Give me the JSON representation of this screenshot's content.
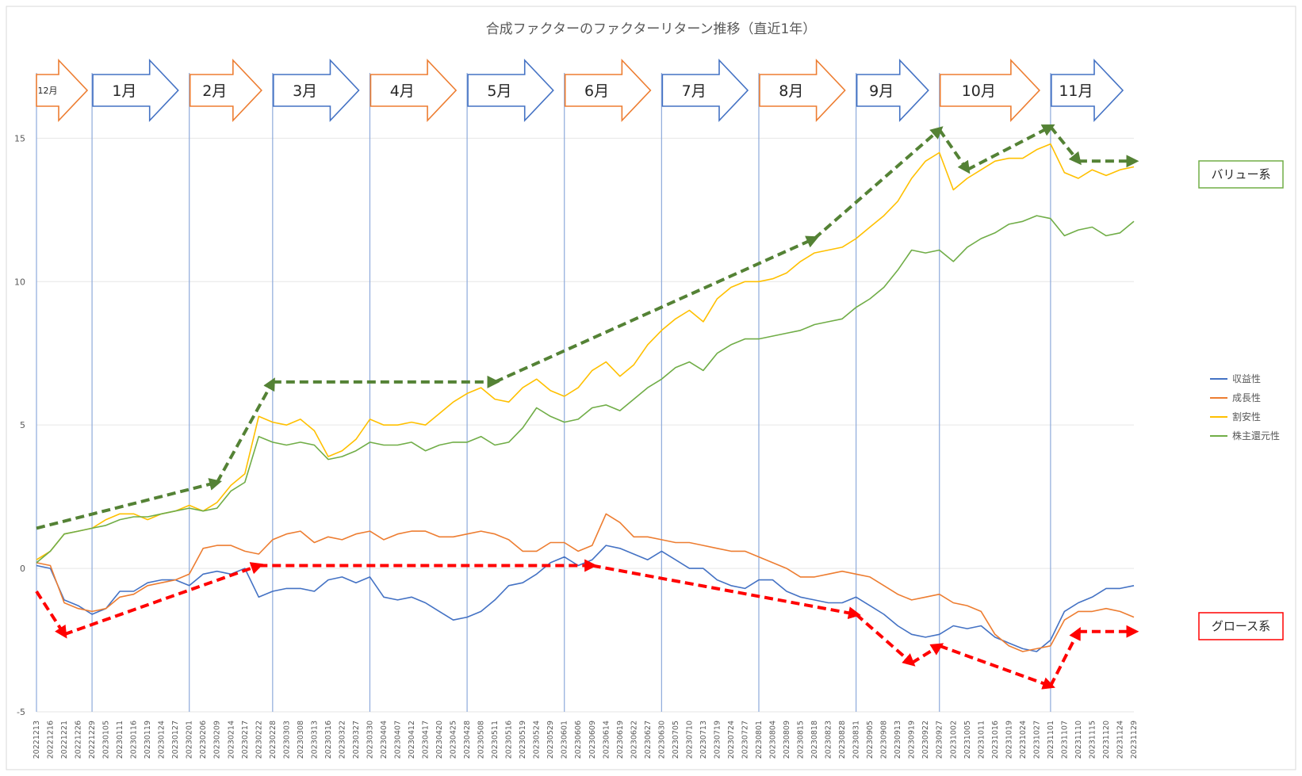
{
  "chart_data": {
    "type": "line",
    "title": "合成ファクターのファクターリターン推移（直近1年）",
    "ylim": [
      -5,
      17
    ],
    "yticks": [
      -5,
      0,
      5,
      10,
      15
    ],
    "grid": true,
    "legend_position": "right",
    "x_tick_labels": [
      "20221213",
      "20221216",
      "20221221",
      "20221226",
      "20221229",
      "20230105",
      "20230111",
      "20230116",
      "20230119",
      "20230124",
      "20230127",
      "20230201",
      "20230206",
      "20230209",
      "20230214",
      "20230217",
      "20230222",
      "20230228",
      "20230303",
      "20230308",
      "20230313",
      "20230316",
      "20230322",
      "20230327",
      "20230330",
      "20230404",
      "20230407",
      "20230412",
      "20230417",
      "20230420",
      "20230425",
      "20230428",
      "20230508",
      "20230511",
      "20230516",
      "20230519",
      "20230524",
      "20230529",
      "20230601",
      "20230606",
      "20230609",
      "20230614",
      "20230619",
      "20230622",
      "20230627",
      "20230630",
      "20230705",
      "20230710",
      "20230713",
      "20230719",
      "20230724",
      "20230727",
      "20230801",
      "20230804",
      "20230809",
      "20230815",
      "20230818",
      "20230823",
      "20230828",
      "20230831",
      "20230905",
      "20230908",
      "20230913",
      "20230919",
      "20230922",
      "20230927",
      "20231002",
      "20231005",
      "20231011",
      "20231016",
      "20231019",
      "20231024",
      "20231027",
      "20231101",
      "20231107",
      "20231110",
      "20231115",
      "20231120",
      "20231124",
      "20231129"
    ],
    "month_boundaries": [
      4,
      11,
      17,
      24,
      31,
      38,
      45,
      52,
      59,
      65,
      73
    ],
    "month_arrows": [
      {
        "label": "12月",
        "color": "#ed7d31"
      },
      {
        "label": "1月",
        "color": "#4472c4"
      },
      {
        "label": "2月",
        "color": "#ed7d31"
      },
      {
        "label": "3月",
        "color": "#4472c4"
      },
      {
        "label": "4月",
        "color": "#ed7d31"
      },
      {
        "label": "5月",
        "color": "#4472c4"
      },
      {
        "label": "6月",
        "color": "#ed7d31"
      },
      {
        "label": "7月",
        "color": "#4472c4"
      },
      {
        "label": "8月",
        "color": "#ed7d31"
      },
      {
        "label": "9月",
        "color": "#4472c4"
      },
      {
        "label": "10月",
        "color": "#ed7d31"
      },
      {
        "label": "11月",
        "color": "#4472c4"
      }
    ],
    "series": [
      {
        "name": "収益性",
        "color": "#4472c4",
        "values": [
          0.1,
          0.0,
          -1.1,
          -1.3,
          -1.6,
          -1.4,
          -0.8,
          -0.8,
          -0.5,
          -0.4,
          -0.4,
          -0.6,
          -0.2,
          -0.1,
          -0.2,
          0.0,
          -1.0,
          -0.8,
          -0.7,
          -0.7,
          -0.8,
          -0.4,
          -0.3,
          -0.5,
          -0.3,
          -1.0,
          -1.1,
          -1.0,
          -1.2,
          -1.5,
          -1.8,
          -1.7,
          -1.5,
          -1.1,
          -0.6,
          -0.5,
          -0.2,
          0.2,
          0.4,
          0.1,
          0.3,
          0.8,
          0.7,
          0.5,
          0.3,
          0.6,
          0.3,
          0.0,
          0.0,
          -0.4,
          -0.6,
          -0.7,
          -0.4,
          -0.4,
          -0.8,
          -1.0,
          -1.1,
          -1.2,
          -1.2,
          -1.0,
          -1.3,
          -1.6,
          -2.0,
          -2.3,
          -2.4,
          -2.3,
          -2.0,
          -2.1,
          -2.0,
          -2.4,
          -2.6,
          -2.8,
          -2.9,
          -2.5,
          -1.5,
          -1.2,
          -1.0,
          -0.7,
          -0.7,
          -0.6
        ]
      },
      {
        "name": "成長性",
        "color": "#ed7d31",
        "values": [
          0.2,
          0.1,
          -1.2,
          -1.4,
          -1.5,
          -1.4,
          -1.0,
          -0.9,
          -0.6,
          -0.5,
          -0.4,
          -0.2,
          0.7,
          0.8,
          0.8,
          0.6,
          0.5,
          1.0,
          1.2,
          1.3,
          0.9,
          1.1,
          1.0,
          1.2,
          1.3,
          1.0,
          1.2,
          1.3,
          1.3,
          1.1,
          1.1,
          1.2,
          1.3,
          1.2,
          1.0,
          0.6,
          0.6,
          0.9,
          0.9,
          0.6,
          0.8,
          1.9,
          1.6,
          1.1,
          1.1,
          1.0,
          0.9,
          0.9,
          0.8,
          0.7,
          0.6,
          0.6,
          0.4,
          0.2,
          0.0,
          -0.3,
          -0.3,
          -0.2,
          -0.1,
          -0.2,
          -0.3,
          -0.6,
          -0.9,
          -1.1,
          -1.0,
          -0.9,
          -1.2,
          -1.3,
          -1.5,
          -2.3,
          -2.7,
          -2.9,
          -2.8,
          -2.7,
          -1.8,
          -1.5,
          -1.5,
          -1.4,
          -1.5,
          -1.7
        ]
      },
      {
        "name": "割安性",
        "color": "#ffc000",
        "values": [
          0.3,
          0.6,
          1.2,
          1.3,
          1.4,
          1.7,
          1.9,
          1.9,
          1.7,
          1.9,
          2.0,
          2.2,
          2.0,
          2.3,
          2.9,
          3.3,
          5.3,
          5.1,
          5.0,
          5.2,
          4.8,
          3.9,
          4.1,
          4.5,
          5.2,
          5.0,
          5.0,
          5.1,
          5.0,
          5.4,
          5.8,
          6.1,
          6.3,
          5.9,
          5.8,
          6.3,
          6.6,
          6.2,
          6.0,
          6.3,
          6.9,
          7.2,
          6.7,
          7.1,
          7.8,
          8.3,
          8.7,
          9.0,
          8.6,
          9.4,
          9.8,
          10.0,
          10.0,
          10.1,
          10.3,
          10.7,
          11.0,
          11.1,
          11.2,
          11.5,
          11.9,
          12.3,
          12.8,
          13.6,
          14.2,
          14.5,
          13.2,
          13.6,
          13.9,
          14.2,
          14.3,
          14.3,
          14.6,
          14.8,
          13.8,
          13.6,
          13.9,
          13.7,
          13.9,
          14.0
        ]
      },
      {
        "name": "株主還元性",
        "color": "#70ad47",
        "values": [
          0.2,
          0.6,
          1.2,
          1.3,
          1.4,
          1.5,
          1.7,
          1.8,
          1.8,
          1.9,
          2.0,
          2.1,
          2.0,
          2.1,
          2.7,
          3.0,
          4.6,
          4.4,
          4.3,
          4.4,
          4.3,
          3.8,
          3.9,
          4.1,
          4.4,
          4.3,
          4.3,
          4.4,
          4.1,
          4.3,
          4.4,
          4.4,
          4.6,
          4.3,
          4.4,
          4.9,
          5.6,
          5.3,
          5.1,
          5.2,
          5.6,
          5.7,
          5.5,
          5.9,
          6.3,
          6.6,
          7.0,
          7.2,
          6.9,
          7.5,
          7.8,
          8.0,
          8.0,
          8.1,
          8.2,
          8.3,
          8.5,
          8.6,
          8.7,
          9.1,
          9.4,
          9.8,
          10.4,
          11.1,
          11.0,
          11.1,
          10.7,
          11.2,
          11.5,
          11.7,
          12.0,
          12.1,
          12.3,
          12.2,
          11.6,
          11.8,
          11.9,
          11.6,
          11.7,
          12.1
        ]
      }
    ],
    "trend_lines": [
      {
        "group": "バリュー系",
        "color": "#548235",
        "points": [
          [
            0,
            1.4
          ],
          [
            13,
            3.0
          ],
          [
            17,
            6.5
          ],
          [
            33,
            6.5
          ],
          [
            56,
            11.5
          ],
          [
            65,
            15.3
          ],
          [
            67,
            13.9
          ],
          [
            73,
            15.4
          ],
          [
            75,
            14.2
          ],
          [
            79,
            14.2
          ]
        ]
      },
      {
        "group": "グロース系",
        "color": "#ff0000",
        "points": [
          [
            0,
            -0.8
          ],
          [
            2,
            -2.3
          ],
          [
            16,
            0.1
          ],
          [
            40,
            0.1
          ],
          [
            59,
            -1.6
          ],
          [
            63,
            -3.3
          ],
          [
            65,
            -2.7
          ],
          [
            73,
            -4.1
          ],
          [
            75,
            -2.2
          ],
          [
            79,
            -2.2
          ]
        ]
      }
    ],
    "callouts": [
      {
        "label": "バリュー系",
        "border": "#70ad47"
      },
      {
        "label": "グロース系",
        "border": "#ff0000"
      }
    ]
  }
}
